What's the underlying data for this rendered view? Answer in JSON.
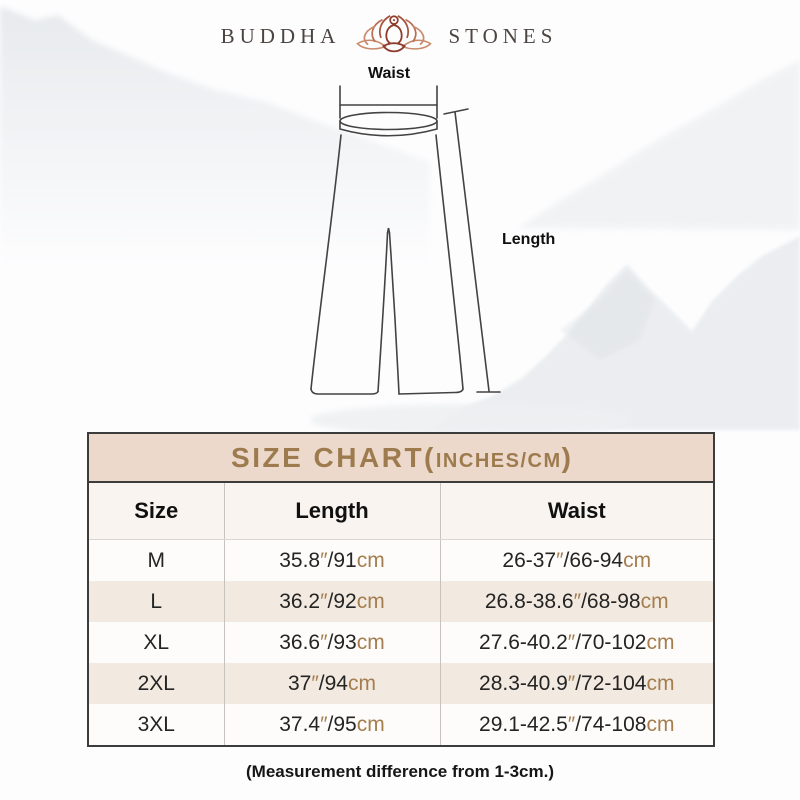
{
  "brand": {
    "name_left": "BUDDHA",
    "name_right": "STONES",
    "logo_icon": "lotus-meditation-icon"
  },
  "diagram": {
    "waist_label": "Waist",
    "length_label": "Length"
  },
  "size_chart": {
    "title_main": "SIZE CHART(",
    "title_units": "INCHES/CM",
    "title_close": ")",
    "columns": [
      "Size",
      "Length",
      "Waist"
    ],
    "rows": [
      {
        "size": "M",
        "length": "35.8″/91cm",
        "waist": "26-37″/66-94cm"
      },
      {
        "size": "L",
        "length": "36.2″/92cm",
        "waist": "26.8-38.6″/68-98cm"
      },
      {
        "size": "XL",
        "length": "36.6″/93cm",
        "waist": "27.6-40.2″/70-102cm"
      },
      {
        "size": "2XL",
        "length": "37″/94cm",
        "waist": "28.3-40.9″/72-104cm"
      },
      {
        "size": "3XL",
        "length": "37.4″/95cm",
        "waist": "29.1-42.5″/74-108cm"
      }
    ]
  },
  "footer_note": "(Measurement difference from 1-3cm.)",
  "colors": {
    "accent_brown": "#a57e4f",
    "title_text": "#9d7b4e",
    "title_band_bg": "#ecd9cb",
    "row_alt_bg": "#f2e9e0",
    "logo_red": "#8e3c2c",
    "table_border": "#3c3c3c"
  }
}
